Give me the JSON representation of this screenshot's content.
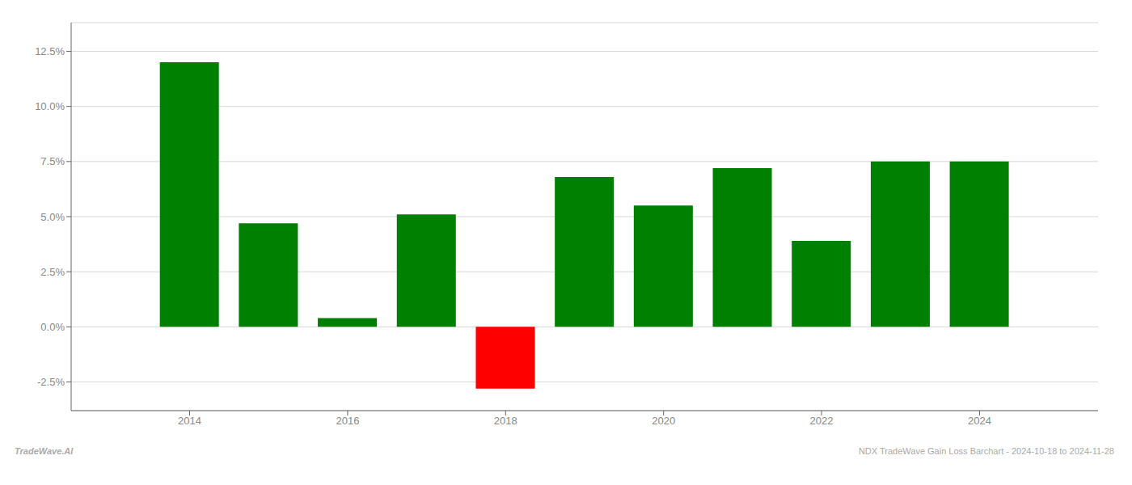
{
  "chart_data": {
    "type": "bar",
    "x": [
      2014,
      2015,
      2016,
      2017,
      2018,
      2019,
      2020,
      2021,
      2022,
      2023,
      2024
    ],
    "values": [
      0.12,
      0.047,
      0.004,
      0.051,
      -0.028,
      0.068,
      0.055,
      0.072,
      0.039,
      0.075,
      0.075
    ],
    "colors": [
      "#008000",
      "#008000",
      "#008000",
      "#008000",
      "#ff0000",
      "#008000",
      "#008000",
      "#008000",
      "#008000",
      "#008000",
      "#008000"
    ],
    "xlim": [
      2012.5,
      2025.5
    ],
    "xticks": [
      2014,
      2016,
      2018,
      2020,
      2022,
      2024
    ],
    "ylim": [
      -0.038,
      0.138
    ],
    "yticks": [
      {
        "value": -0.025,
        "label": "-2.5%"
      },
      {
        "value": 0.0,
        "label": "0.0%"
      },
      {
        "value": 0.025,
        "label": "2.5%"
      },
      {
        "value": 0.05,
        "label": "5.0%"
      },
      {
        "value": 0.075,
        "label": "7.5%"
      },
      {
        "value": 0.1,
        "label": "10.0%"
      },
      {
        "value": 0.125,
        "label": "12.5%"
      }
    ],
    "grid": true,
    "annotations": [
      "TradeWave.AI",
      "NDX TradeWave Gain Loss Barchart - 2024-10-18 to 2024-11-28"
    ]
  }
}
